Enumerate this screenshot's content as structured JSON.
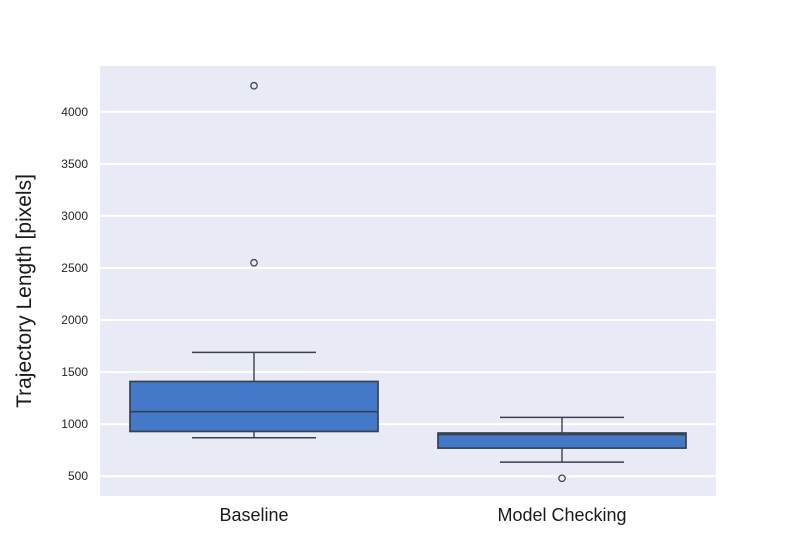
{
  "figure": {
    "background": "#ffffff",
    "plot_background": "#e8eaf6",
    "grid_color": "#ffffff",
    "text_color": "#1a1a1a",
    "tick_text_color": "#262626"
  },
  "chart_data": {
    "type": "boxplot",
    "title": "",
    "xlabel": "",
    "ylabel": "Trajectory Length [pixels]",
    "categories": [
      "Baseline",
      "Model Checking"
    ],
    "y_ticks": [
      500,
      1000,
      1500,
      2000,
      2500,
      3000,
      3500,
      4000
    ],
    "ylim": [
      310,
      4440
    ],
    "grid": true,
    "legend": false,
    "boxes": [
      {
        "category": "Baseline",
        "whisker_low": 870,
        "q1": 930,
        "median": 1120,
        "q3": 1410,
        "whisker_high": 1690,
        "outliers": [
          2550,
          4250
        ]
      },
      {
        "category": "Model Checking",
        "whisker_low": 635,
        "q1": 770,
        "median": 900,
        "q3": 915,
        "whisker_high": 1065,
        "outliers": [
          480
        ]
      }
    ],
    "style": {
      "box_fill": "#4478c8",
      "line_color": "#36424e",
      "outlier_stroke": "#3b4754"
    }
  }
}
